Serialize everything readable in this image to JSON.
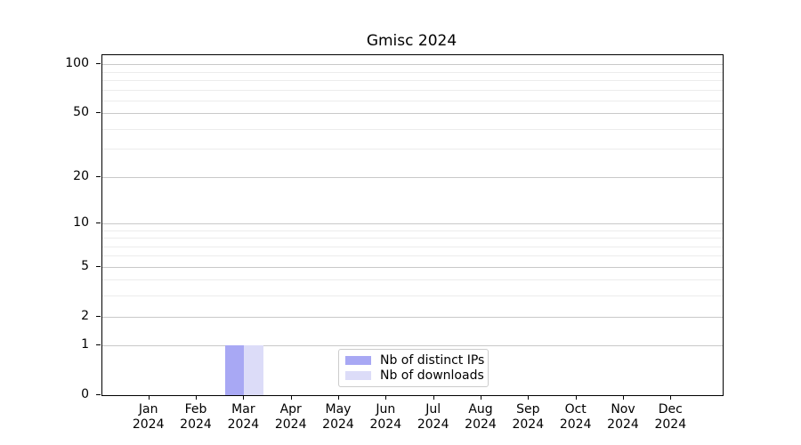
{
  "chart_data": {
    "type": "bar",
    "title": "Gmisc 2024",
    "categories": [
      "Jan 2024",
      "Feb 2024",
      "Mar 2024",
      "Apr 2024",
      "May 2024",
      "Jun 2024",
      "Jul 2024",
      "Aug 2024",
      "Sep 2024",
      "Oct 2024",
      "Nov 2024",
      "Dec 2024"
    ],
    "series": [
      {
        "name": "Nb of distinct IPs",
        "color": "#a8a8f4",
        "values": [
          0,
          0,
          1,
          0,
          0,
          0,
          0,
          0,
          0,
          0,
          0,
          0
        ]
      },
      {
        "name": "Nb of downloads",
        "color": "#dcdcf8",
        "values": [
          0,
          0,
          1,
          0,
          0,
          0,
          0,
          0,
          0,
          0,
          0,
          0
        ]
      }
    ],
    "yscale": "log1p",
    "ylim": [
      0,
      113.6
    ],
    "yticks": [
      0,
      1,
      2,
      5,
      10,
      20,
      50,
      100
    ],
    "minor_yticks": [
      3,
      4,
      6,
      7,
      8,
      9,
      30,
      40,
      60,
      70,
      80,
      90
    ],
    "grid": "horizontal",
    "legend_position": "lower center"
  },
  "colors": {
    "major_grid": "#c9c9c9",
    "minor_grid": "#ececec",
    "spine": "#000000",
    "background": "#ffffff"
  }
}
